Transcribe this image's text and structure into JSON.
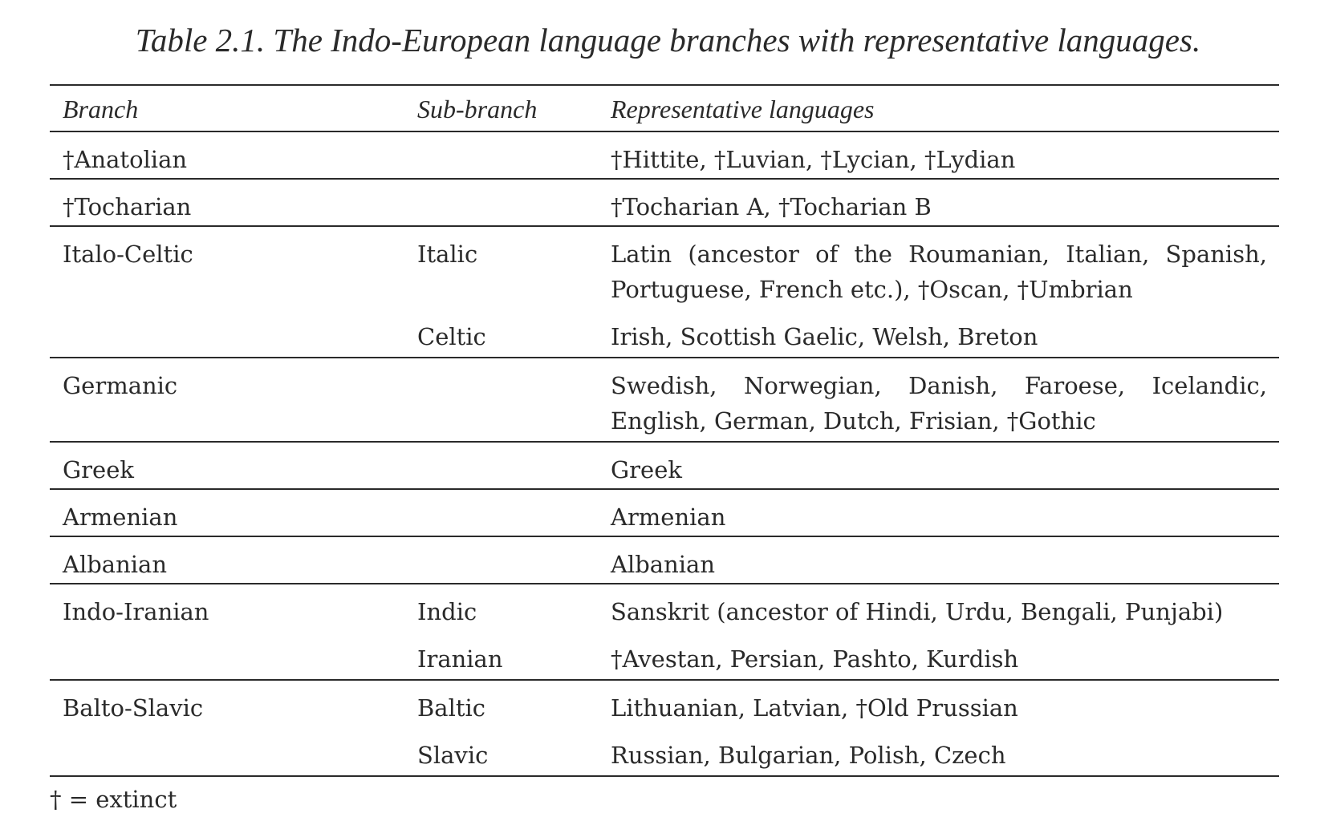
{
  "caption": "Table 2.1. The Indo-European language branches with representative languages.",
  "headers": {
    "branch": "Branch",
    "sub_branch": "Sub-branch",
    "languages": "Representative languages"
  },
  "rows": [
    {
      "branch": "†Anatolian",
      "subs": [
        {
          "sub_branch": "",
          "languages": "†Hittite, †Luvian, †Lycian, †Lydian"
        }
      ]
    },
    {
      "branch": "†Tocharian",
      "subs": [
        {
          "sub_branch": "",
          "languages": "†Tocharian A, †Tocharian B"
        }
      ]
    },
    {
      "branch": "Italo-Celtic",
      "subs": [
        {
          "sub_branch": "Italic",
          "languages": "Latin (ancestor of the Roumanian, Italian, Spanish, Portuguese, French etc.), †Oscan, †Umbrian"
        },
        {
          "sub_branch": "Celtic",
          "languages": "Irish, Scottish Gaelic, Welsh, Breton"
        }
      ]
    },
    {
      "branch": "Germanic",
      "subs": [
        {
          "sub_branch": "",
          "languages": "Swedish, Norwegian, Danish, Faroese, Icelandic, English, German, Dutch, Frisian, †Gothic"
        }
      ]
    },
    {
      "branch": "Greek",
      "subs": [
        {
          "sub_branch": "",
          "languages": "Greek"
        }
      ]
    },
    {
      "branch": "Armenian",
      "subs": [
        {
          "sub_branch": "",
          "languages": "Armenian"
        }
      ]
    },
    {
      "branch": "Albanian",
      "subs": [
        {
          "sub_branch": "",
          "languages": "Albanian"
        }
      ]
    },
    {
      "branch": "Indo-Iranian",
      "subs": [
        {
          "sub_branch": "Indic",
          "languages": "Sanskrit (ancestor of Hindi, Urdu, Bengali, Punjabi)"
        },
        {
          "sub_branch": "Iranian",
          "languages": "†Avestan, Persian, Pashto, Kurdish"
        }
      ]
    },
    {
      "branch": "Balto-Slavic",
      "subs": [
        {
          "sub_branch": "Baltic",
          "languages": "Lithuanian, Latvian, †Old Prussian"
        },
        {
          "sub_branch": "Slavic",
          "languages": "Russian, Bulgarian, Polish, Czech"
        }
      ]
    }
  ],
  "footnote": "† = extinct"
}
